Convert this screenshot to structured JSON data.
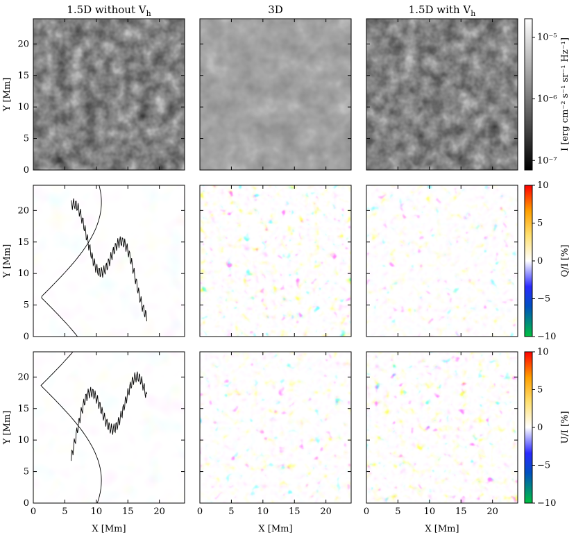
{
  "chart_data": {
    "type": "heatmap",
    "columns": [
      {
        "title": "1.5D without V",
        "title_sub": "h"
      },
      {
        "title": "3D",
        "title_sub": ""
      },
      {
        "title": "1.5D with V",
        "title_sub": "h"
      }
    ],
    "xlabel": "X [Mm]",
    "ylabel": "Y [Mm]",
    "x_ticks": [
      "0",
      "5",
      "10",
      "15",
      "20"
    ],
    "y_ticks": [
      "0",
      "5",
      "10",
      "15",
      "20"
    ],
    "xlim": [
      0,
      24
    ],
    "ylim": [
      0,
      24
    ],
    "rows": [
      {
        "quantity": "intensity",
        "colormap": "gray",
        "colorbar_label": "I [erg cm⁻² s⁻¹ sr⁻¹ Hz⁻¹]",
        "colorbar_scale": "log",
        "colorbar_ticks": [
          "10⁻⁵",
          "10⁻⁶",
          "10⁻⁷"
        ],
        "colorbar_range": [
          7e-08,
          2e-05
        ]
      },
      {
        "quantity": "Q/I",
        "colormap": "green-blue-white-yellow-red",
        "colorbar_label": "Q/I [%]",
        "colorbar_ticks": [
          "10",
          "5",
          "0",
          "−5",
          "−10"
        ],
        "colorbar_range": [
          -10,
          10
        ],
        "contours_in_first_panel": true
      },
      {
        "quantity": "U/I",
        "colormap": "green-blue-white-yellow-red",
        "colorbar_label": "U/I [%]",
        "colorbar_ticks": [
          "10",
          "5",
          "0",
          "−5",
          "−10"
        ],
        "colorbar_range": [
          -10,
          10
        ],
        "contours_in_first_panel": true
      }
    ],
    "colors": {
      "diverging": [
        "#00c040",
        "#0000ff",
        "#ffffff",
        "#ffd000",
        "#ff0000"
      ],
      "gray": [
        "#000000",
        "#ffffff"
      ]
    }
  }
}
